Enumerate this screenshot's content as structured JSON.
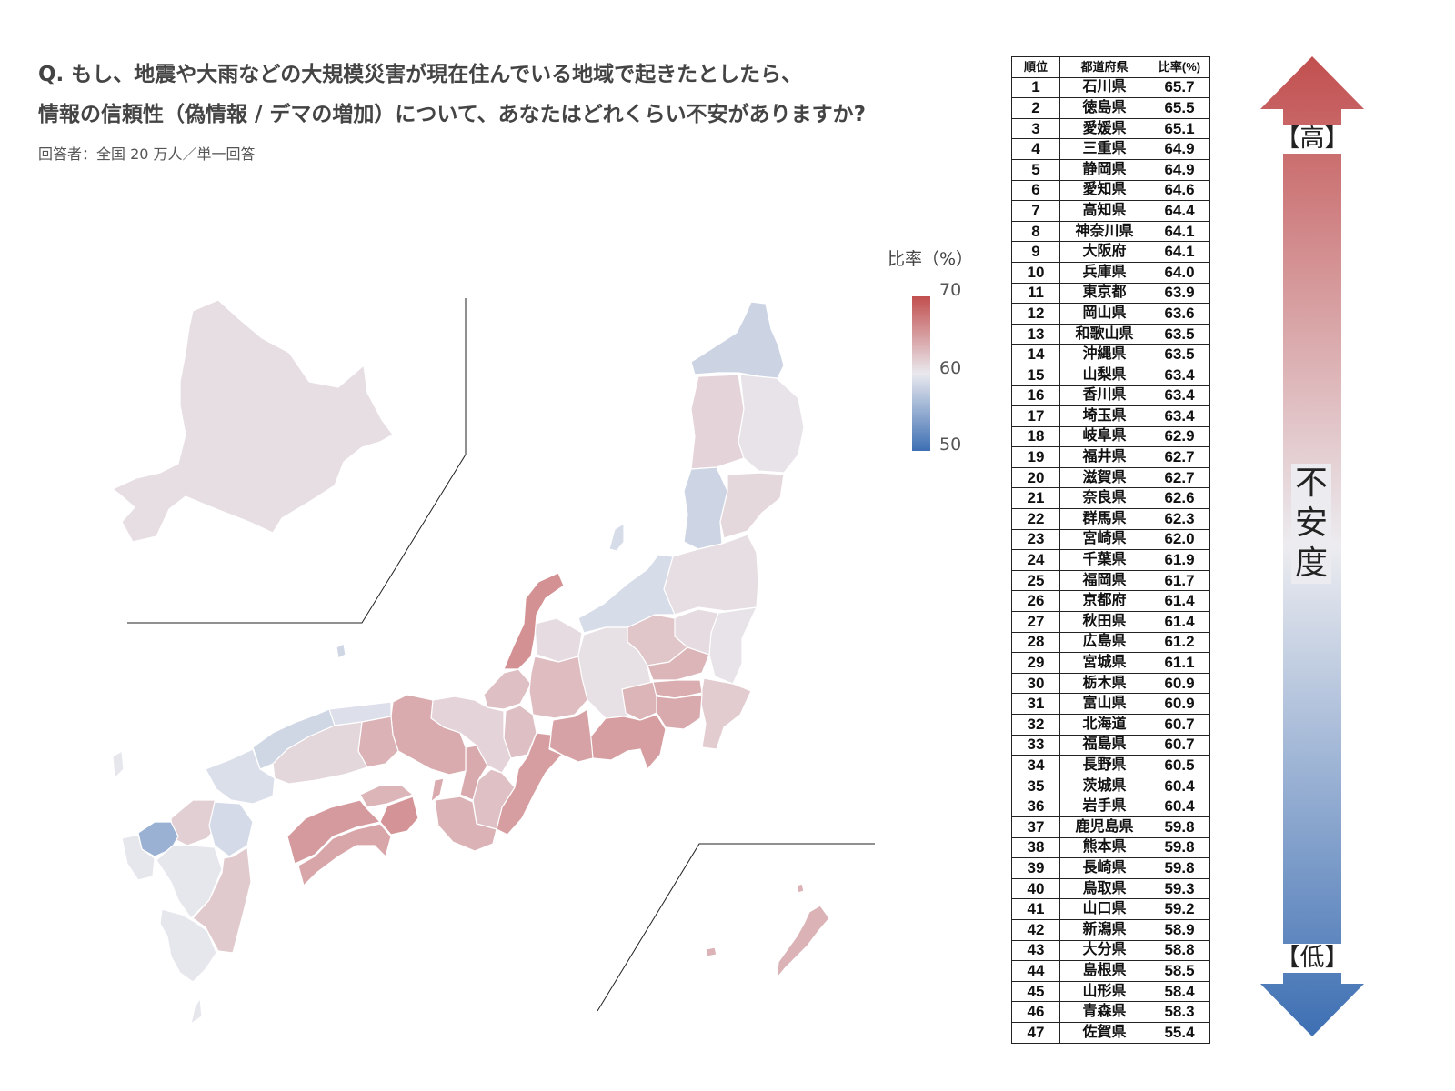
{
  "header": {
    "question_line1": "Q. もし、地震や大雨などの大規模災害が現在住んでいる地域で起きたとしたら、",
    "question_line2": "情報の信頼性（偽情報 / デマの増加）について、あなたはどれくらい不安がありますか?",
    "respondents": "回答者：全国 20 万人／単一回答"
  },
  "legend": {
    "title": "比率（%）",
    "max_label": "70",
    "mid_label": "60",
    "min_label": "50",
    "value_range": [
      50,
      70
    ],
    "colors": {
      "high": "#c24f4f",
      "mid": "#e9e9ee",
      "low": "#3d6fb3"
    }
  },
  "table": {
    "headers": [
      "順位",
      "都道府県",
      "比率(%)"
    ],
    "rows": [
      {
        "rank": "1",
        "pref": "石川県",
        "rate": "65.7"
      },
      {
        "rank": "2",
        "pref": "徳島県",
        "rate": "65.5"
      },
      {
        "rank": "3",
        "pref": "愛媛県",
        "rate": "65.1"
      },
      {
        "rank": "4",
        "pref": "三重県",
        "rate": "64.9"
      },
      {
        "rank": "5",
        "pref": "静岡県",
        "rate": "64.9"
      },
      {
        "rank": "6",
        "pref": "愛知県",
        "rate": "64.6"
      },
      {
        "rank": "7",
        "pref": "高知県",
        "rate": "64.4"
      },
      {
        "rank": "8",
        "pref": "神奈川県",
        "rate": "64.1"
      },
      {
        "rank": "9",
        "pref": "大阪府",
        "rate": "64.1"
      },
      {
        "rank": "10",
        "pref": "兵庫県",
        "rate": "64.0"
      },
      {
        "rank": "11",
        "pref": "東京都",
        "rate": "63.9"
      },
      {
        "rank": "12",
        "pref": "岡山県",
        "rate": "63.6"
      },
      {
        "rank": "13",
        "pref": "和歌山県",
        "rate": "63.5"
      },
      {
        "rank": "14",
        "pref": "沖縄県",
        "rate": "63.5"
      },
      {
        "rank": "15",
        "pref": "山梨県",
        "rate": "63.4"
      },
      {
        "rank": "16",
        "pref": "香川県",
        "rate": "63.4"
      },
      {
        "rank": "17",
        "pref": "埼玉県",
        "rate": "63.4"
      },
      {
        "rank": "18",
        "pref": "岐阜県",
        "rate": "62.9"
      },
      {
        "rank": "19",
        "pref": "福井県",
        "rate": "62.7"
      },
      {
        "rank": "20",
        "pref": "滋賀県",
        "rate": "62.7"
      },
      {
        "rank": "21",
        "pref": "奈良県",
        "rate": "62.6"
      },
      {
        "rank": "22",
        "pref": "群馬県",
        "rate": "62.3"
      },
      {
        "rank": "23",
        "pref": "宮崎県",
        "rate": "62.0"
      },
      {
        "rank": "24",
        "pref": "千葉県",
        "rate": "61.9"
      },
      {
        "rank": "25",
        "pref": "福岡県",
        "rate": "61.7"
      },
      {
        "rank": "26",
        "pref": "京都府",
        "rate": "61.4"
      },
      {
        "rank": "27",
        "pref": "秋田県",
        "rate": "61.4"
      },
      {
        "rank": "28",
        "pref": "広島県",
        "rate": "61.2"
      },
      {
        "rank": "29",
        "pref": "宮城県",
        "rate": "61.1"
      },
      {
        "rank": "30",
        "pref": "栃木県",
        "rate": "60.9"
      },
      {
        "rank": "31",
        "pref": "富山県",
        "rate": "60.9"
      },
      {
        "rank": "32",
        "pref": "北海道",
        "rate": "60.7"
      },
      {
        "rank": "33",
        "pref": "福島県",
        "rate": "60.7"
      },
      {
        "rank": "34",
        "pref": "長野県",
        "rate": "60.5"
      },
      {
        "rank": "35",
        "pref": "茨城県",
        "rate": "60.4"
      },
      {
        "rank": "36",
        "pref": "岩手県",
        "rate": "60.4"
      },
      {
        "rank": "37",
        "pref": "鹿児島県",
        "rate": "59.8"
      },
      {
        "rank": "38",
        "pref": "熊本県",
        "rate": "59.8"
      },
      {
        "rank": "39",
        "pref": "長崎県",
        "rate": "59.8"
      },
      {
        "rank": "40",
        "pref": "鳥取県",
        "rate": "59.3"
      },
      {
        "rank": "41",
        "pref": "山口県",
        "rate": "59.2"
      },
      {
        "rank": "42",
        "pref": "新潟県",
        "rate": "58.9"
      },
      {
        "rank": "43",
        "pref": "大分県",
        "rate": "58.8"
      },
      {
        "rank": "44",
        "pref": "島根県",
        "rate": "58.5"
      },
      {
        "rank": "45",
        "pref": "山形県",
        "rate": "58.4"
      },
      {
        "rank": "46",
        "pref": "青森県",
        "rate": "58.3"
      },
      {
        "rank": "47",
        "pref": "佐賀県",
        "rate": "55.4"
      }
    ]
  },
  "scale": {
    "high_label": "【高】",
    "center_label": "不安度",
    "low_label": "【低】",
    "colors": {
      "top": "#c24f4f",
      "middle": "#ececf0",
      "bottom": "#3d6fb3"
    }
  }
}
